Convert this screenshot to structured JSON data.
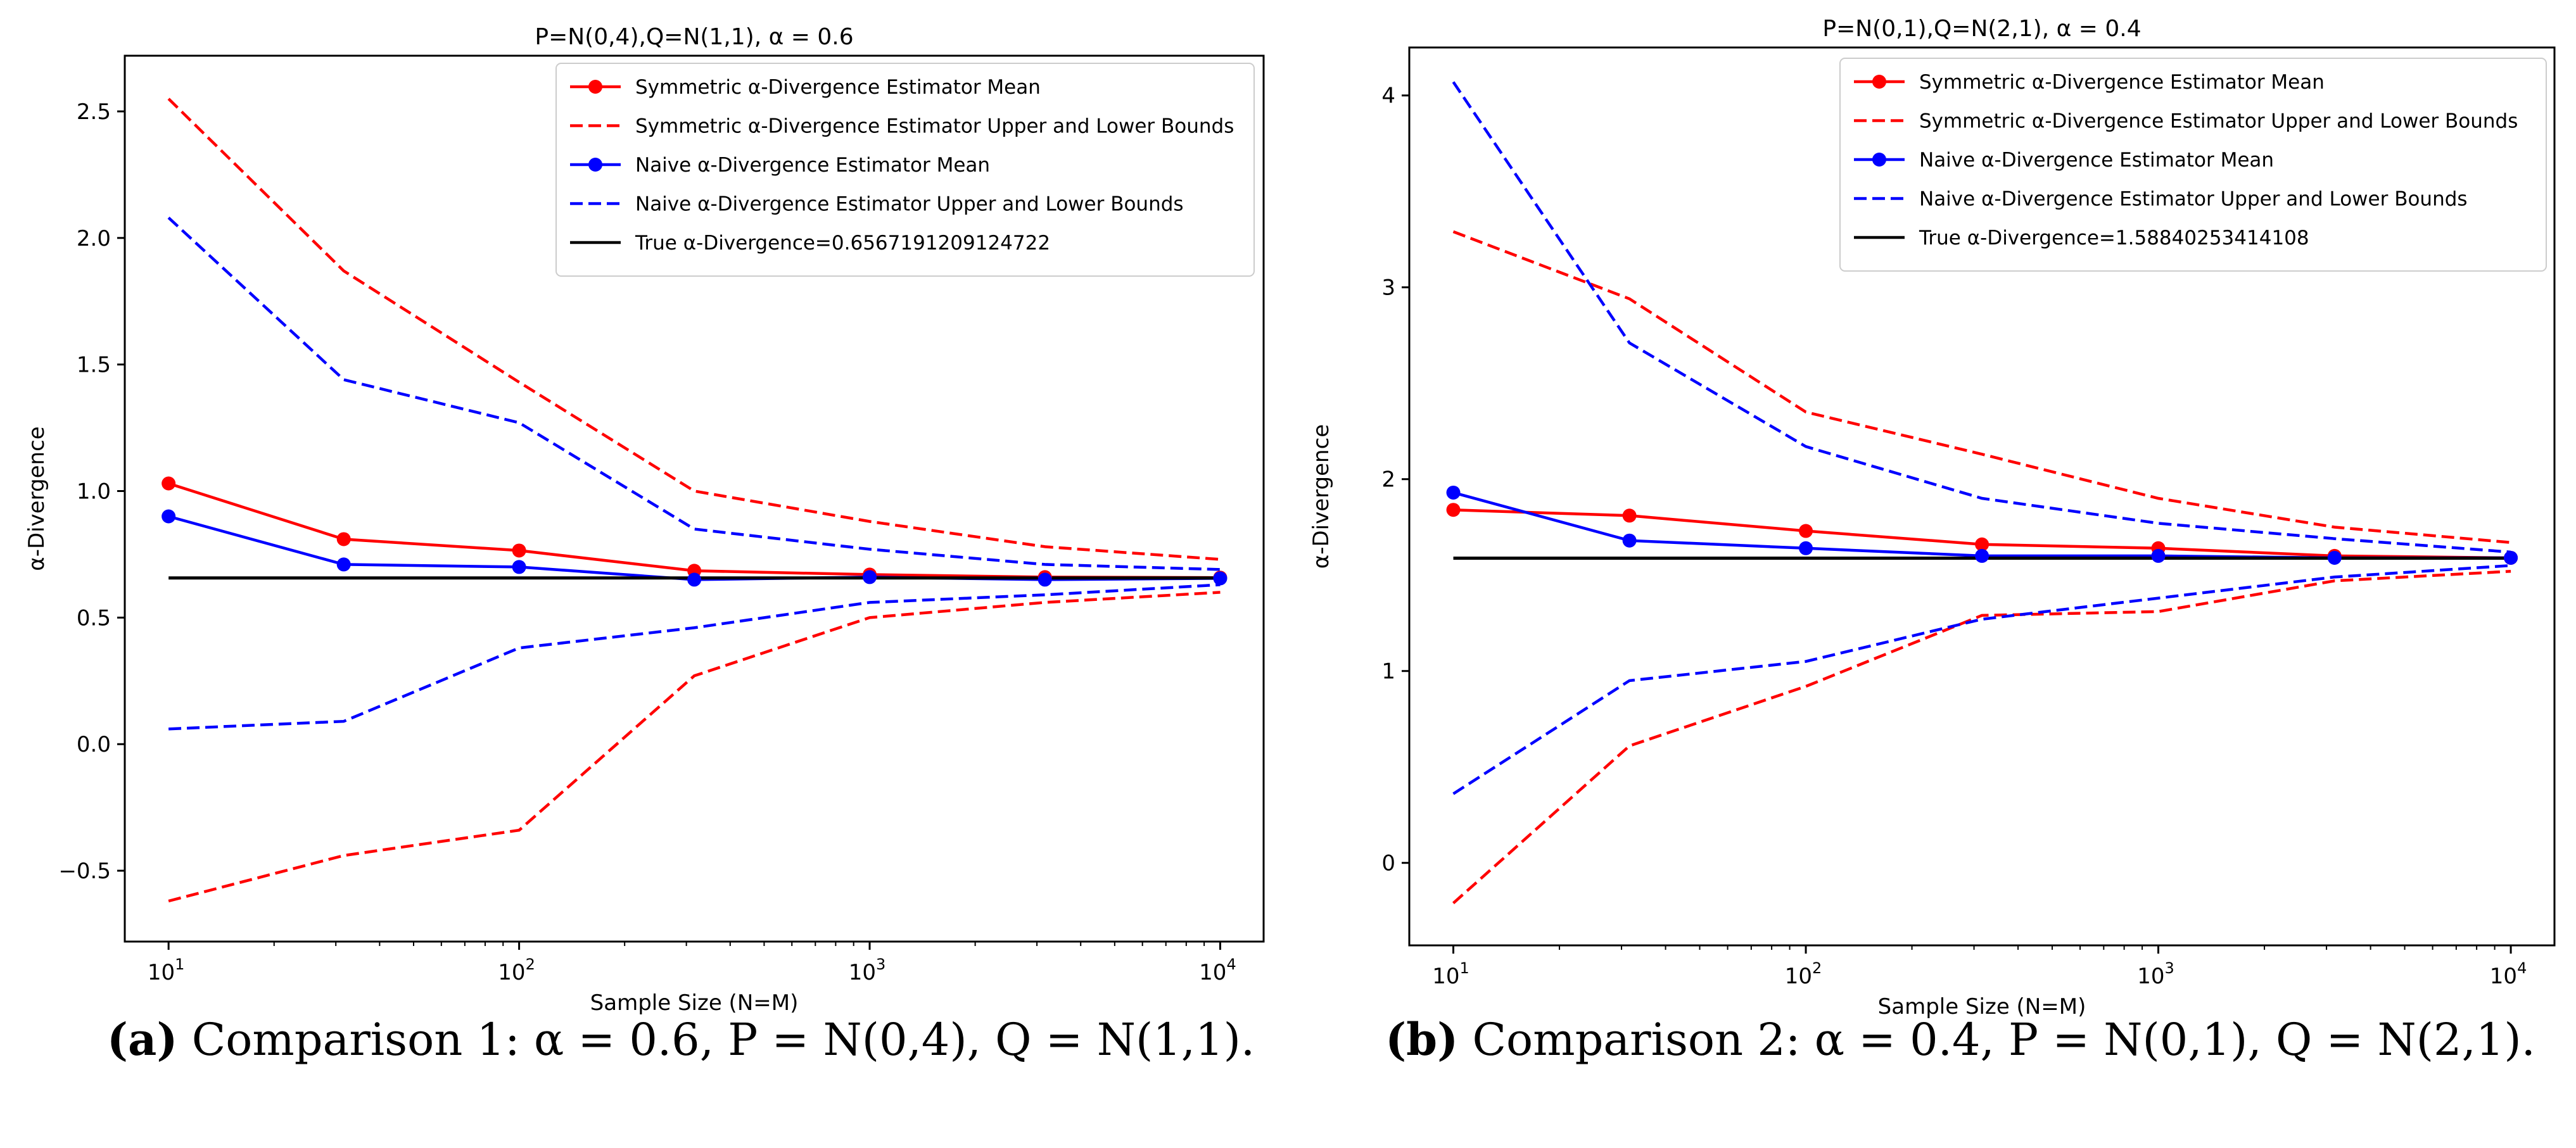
{
  "chart_data": [
    {
      "type": "line",
      "title": "P=N(0,4),Q=N(1,1), α = 0.6",
      "xlabel": "Sample Size (N=M)",
      "ylabel": "α-Divergence",
      "x_scale": "log",
      "x": [
        10,
        31.6,
        100,
        316,
        1000,
        3162,
        10000
      ],
      "xlim": [
        7.5,
        13300
      ],
      "ylim": [
        -0.78,
        2.72
      ],
      "xticks": [
        {
          "v": 10,
          "b": "10",
          "e": "1"
        },
        {
          "v": 100,
          "b": "10",
          "e": "2"
        },
        {
          "v": 1000,
          "b": "10",
          "e": "3"
        },
        {
          "v": 10000,
          "b": "10",
          "e": "4"
        }
      ],
      "yticks": [
        {
          "v": -0.5,
          "label": "−0.5"
        },
        {
          "v": 0.0,
          "label": "0.0"
        },
        {
          "v": 0.5,
          "label": "0.5"
        },
        {
          "v": 1.0,
          "label": "1.0"
        },
        {
          "v": 1.5,
          "label": "1.5"
        },
        {
          "v": 2.0,
          "label": "2.0"
        },
        {
          "v": 2.5,
          "label": "2.5"
        }
      ],
      "grid": false,
      "legend_position": "top-right",
      "series": [
        {
          "name": "Symmetric α-Divergence Estimator Mean",
          "color": "#ff0000",
          "style": "solid-marker",
          "values": [
            1.03,
            0.81,
            0.765,
            0.685,
            0.67,
            0.66,
            0.658
          ]
        },
        {
          "name": "Symmetric α-Divergence Estimator Upper and Lower Bounds",
          "color": "#ff0000",
          "style": "dashed",
          "values": [
            2.55,
            1.87,
            1.43,
            1.0,
            0.88,
            0.78,
            0.73
          ],
          "values_lower": [
            -0.62,
            -0.44,
            -0.34,
            0.27,
            0.5,
            0.56,
            0.6
          ]
        },
        {
          "name": "Naive α-Divergence Estimator Mean",
          "color": "#0000ff",
          "style": "solid-marker",
          "values": [
            0.9,
            0.71,
            0.7,
            0.65,
            0.66,
            0.65,
            0.655
          ]
        },
        {
          "name": "Naive α-Divergence Estimator Upper and Lower Bounds",
          "color": "#0000ff",
          "style": "dashed",
          "values": [
            2.08,
            1.44,
            1.27,
            0.85,
            0.77,
            0.71,
            0.69
          ],
          "values_lower": [
            0.06,
            0.09,
            0.38,
            0.46,
            0.56,
            0.59,
            0.63
          ]
        },
        {
          "name": "True α-Divergence=0.6567191209124722",
          "color": "#000000",
          "style": "solid",
          "constant": 0.6567191209124722
        }
      ]
    },
    {
      "type": "line",
      "title": "P=N(0,1),Q=N(2,1), α = 0.4",
      "xlabel": "Sample Size (N=M)",
      "ylabel": "α-Divergence",
      "x_scale": "log",
      "x": [
        10,
        31.6,
        100,
        316,
        1000,
        3162,
        10000
      ],
      "xlim": [
        7.5,
        13300
      ],
      "ylim": [
        -0.43,
        4.25
      ],
      "xticks": [
        {
          "v": 10,
          "b": "10",
          "e": "1"
        },
        {
          "v": 100,
          "b": "10",
          "e": "2"
        },
        {
          "v": 1000,
          "b": "10",
          "e": "3"
        },
        {
          "v": 10000,
          "b": "10",
          "e": "4"
        }
      ],
      "yticks": [
        {
          "v": 0,
          "label": "0"
        },
        {
          "v": 1,
          "label": "1"
        },
        {
          "v": 2,
          "label": "2"
        },
        {
          "v": 3,
          "label": "3"
        },
        {
          "v": 4,
          "label": "4"
        }
      ],
      "grid": false,
      "legend_position": "top-right",
      "series": [
        {
          "name": "Symmetric α-Divergence Estimator Mean",
          "color": "#ff0000",
          "style": "solid-marker",
          "values": [
            1.84,
            1.81,
            1.73,
            1.66,
            1.64,
            1.6,
            1.59
          ]
        },
        {
          "name": "Symmetric α-Divergence Estimator Upper and Lower Bounds",
          "color": "#ff0000",
          "style": "dashed",
          "values": [
            3.29,
            2.94,
            2.35,
            2.13,
            1.9,
            1.75,
            1.67
          ],
          "values_lower": [
            -0.21,
            0.61,
            0.92,
            1.29,
            1.31,
            1.47,
            1.52
          ]
        },
        {
          "name": "Naive α-Divergence Estimator Mean",
          "color": "#0000ff",
          "style": "solid-marker",
          "values": [
            1.93,
            1.68,
            1.64,
            1.6,
            1.6,
            1.59,
            1.59
          ]
        },
        {
          "name": "Naive α-Divergence Estimator Upper and Lower Bounds",
          "color": "#0000ff",
          "style": "dashed",
          "values": [
            4.07,
            2.71,
            2.17,
            1.9,
            1.77,
            1.69,
            1.62
          ],
          "values_lower": [
            0.36,
            0.95,
            1.05,
            1.27,
            1.38,
            1.49,
            1.55
          ]
        },
        {
          "name": "True α-Divergence=1.58840253414108",
          "color": "#000000",
          "style": "solid",
          "constant": 1.58840253414108
        }
      ]
    }
  ],
  "captions": [
    {
      "tag": "(a)",
      "text": " Comparison 1: α = 0.6, P = N(0,4), Q = N(1,1)."
    },
    {
      "tag": "(b)",
      "text": " Comparison 2: α = 0.4, P = N(0,1), Q = N(2,1)."
    }
  ]
}
